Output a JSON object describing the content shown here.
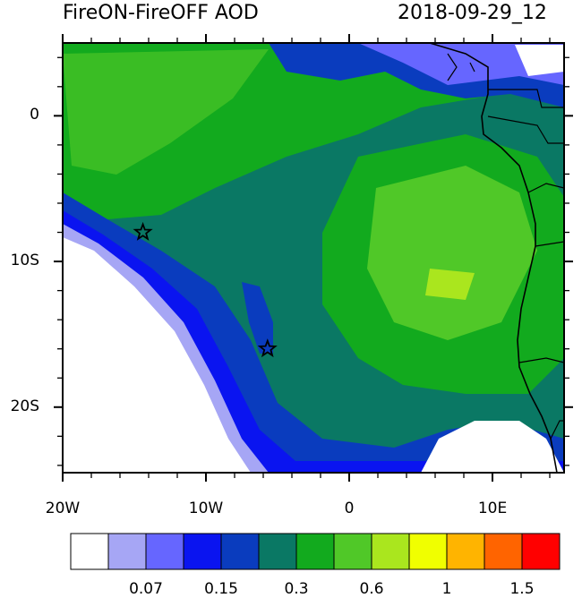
{
  "title_left": "FireON-FireOFF AOD",
  "title_right": "2018-09-29_12",
  "y_axis": {
    "labels": [
      {
        "text": "0",
        "lat": 0
      },
      {
        "text": "10S",
        "lat": -10
      },
      {
        "text": "20S",
        "lat": -20
      }
    ]
  },
  "x_axis": {
    "labels": [
      {
        "text": "20W",
        "lon": -20
      },
      {
        "text": "10W",
        "lon": -10
      },
      {
        "text": "0",
        "lon": 0
      },
      {
        "text": "10E",
        "lon": 10
      }
    ]
  },
  "map_extent": {
    "lon_min": -20,
    "lon_max": 15,
    "lat_min": -24.5,
    "lat_max": 5
  },
  "markers": [
    {
      "name": "star-marker-north",
      "lon": -14.4,
      "lat": -8.0
    },
    {
      "name": "star-marker-south",
      "lon": -5.7,
      "lat": -16.0
    }
  ],
  "colorbar": {
    "colors": [
      "#ffffff",
      "#a6a6f5",
      "#6666ff",
      "#0a14f0",
      "#0a3cbe",
      "#0a7864",
      "#12aa1e",
      "#50c828",
      "#aae61e",
      "#f0ff00",
      "#ffb400",
      "#ff6400",
      "#ff0000"
    ],
    "labels": [
      {
        "text": "0.07",
        "index": 2
      },
      {
        "text": "0.15",
        "index": 4
      },
      {
        "text": "0.3",
        "index": 6
      },
      {
        "text": "0.6",
        "index": 8
      },
      {
        "text": "1",
        "index": 10
      },
      {
        "text": "1.5",
        "index": 12
      }
    ]
  }
}
